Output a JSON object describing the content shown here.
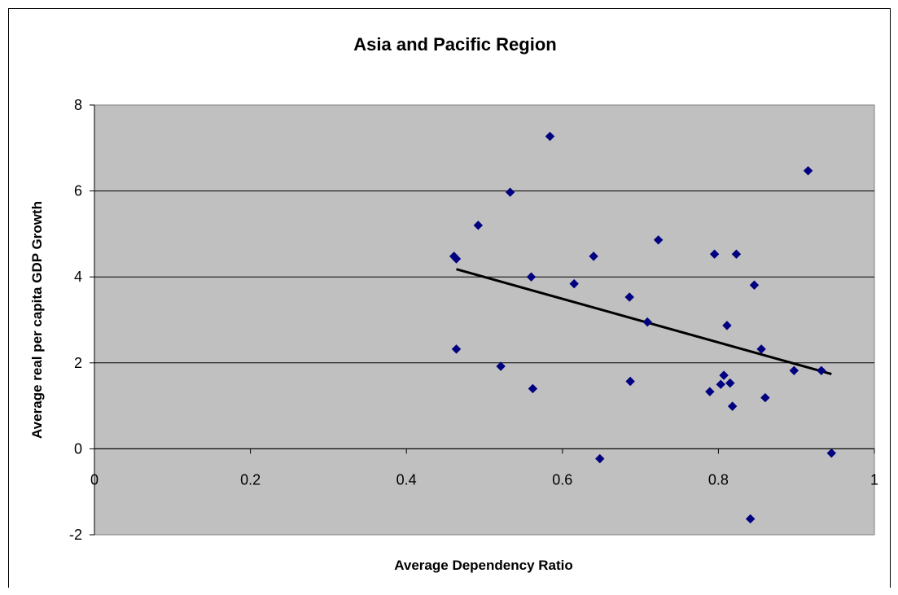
{
  "chart_data": {
    "type": "scatter",
    "title": "Asia and Pacific Region",
    "xlabel": "Average Dependency Ratio",
    "ylabel": "Average real per capita GDP Growth",
    "xlim": [
      0,
      1
    ],
    "ylim": [
      -2,
      8
    ],
    "x_ticks": [
      "0",
      "0.2",
      "0.4",
      "0.6",
      "0.8",
      "1"
    ],
    "y_ticks": [
      "-2",
      "0",
      "2",
      "4",
      "6",
      "8"
    ],
    "grid": "horizontal",
    "legend": "none",
    "plot_background": "#c0c0c0",
    "marker_color": "#000080",
    "trendline_color": "#000000",
    "points": [
      {
        "x": 0.461,
        "y": 4.48
      },
      {
        "x": 0.464,
        "y": 4.42
      },
      {
        "x": 0.464,
        "y": 2.32
      },
      {
        "x": 0.492,
        "y": 5.2
      },
      {
        "x": 0.521,
        "y": 1.92
      },
      {
        "x": 0.533,
        "y": 5.97
      },
      {
        "x": 0.56,
        "y": 4.0
      },
      {
        "x": 0.562,
        "y": 1.4
      },
      {
        "x": 0.584,
        "y": 7.27
      },
      {
        "x": 0.615,
        "y": 3.84
      },
      {
        "x": 0.64,
        "y": 4.48
      },
      {
        "x": 0.648,
        "y": -0.23
      },
      {
        "x": 0.686,
        "y": 3.53
      },
      {
        "x": 0.687,
        "y": 1.57
      },
      {
        "x": 0.709,
        "y": 2.95
      },
      {
        "x": 0.723,
        "y": 4.86
      },
      {
        "x": 0.789,
        "y": 1.33
      },
      {
        "x": 0.795,
        "y": 4.53
      },
      {
        "x": 0.803,
        "y": 1.5
      },
      {
        "x": 0.807,
        "y": 1.71
      },
      {
        "x": 0.811,
        "y": 2.87
      },
      {
        "x": 0.815,
        "y": 1.53
      },
      {
        "x": 0.818,
        "y": 0.99
      },
      {
        "x": 0.823,
        "y": 4.53
      },
      {
        "x": 0.841,
        "y": -1.63
      },
      {
        "x": 0.846,
        "y": 3.81
      },
      {
        "x": 0.855,
        "y": 2.32
      },
      {
        "x": 0.86,
        "y": 1.19
      },
      {
        "x": 0.897,
        "y": 1.82
      },
      {
        "x": 0.915,
        "y": 6.47
      },
      {
        "x": 0.932,
        "y": 1.82
      },
      {
        "x": 0.945,
        "y": -0.1
      }
    ],
    "trendline": {
      "x": [
        0.464,
        0.945
      ],
      "y": [
        4.18,
        1.74
      ]
    }
  }
}
